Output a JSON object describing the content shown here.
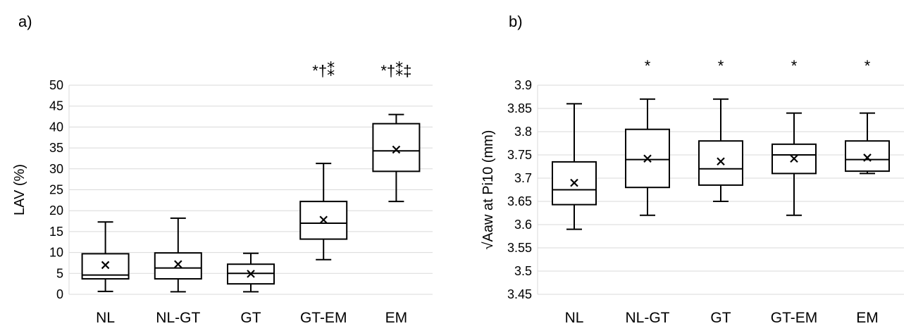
{
  "chart_data": [
    {
      "type": "box",
      "panel_label": "a)",
      "ylabel": "LAV (%)",
      "ylim": [
        0,
        50
      ],
      "y_ticks": [
        "0",
        "5",
        "10",
        "15",
        "20",
        "25",
        "30",
        "35",
        "40",
        "45",
        "50"
      ],
      "grid": true,
      "categories": [
        "NL",
        "NL-GT",
        "GT",
        "GT-EM",
        "EM"
      ],
      "boxes": [
        {
          "category": "NL",
          "min": 0.7,
          "q1": 3.7,
          "median": 4.6,
          "q3": 9.7,
          "max": 17.3,
          "mean": 7.0
        },
        {
          "category": "NL-GT",
          "min": 0.6,
          "q1": 3.7,
          "median": 6.3,
          "q3": 9.9,
          "max": 18.2,
          "mean": 7.2
        },
        {
          "category": "GT",
          "min": 0.6,
          "q1": 2.5,
          "median": 5.0,
          "q3": 7.2,
          "max": 9.8,
          "mean": 4.9
        },
        {
          "category": "GT-EM",
          "min": 8.3,
          "q1": 13.2,
          "median": 17.0,
          "q3": 22.2,
          "max": 31.3,
          "mean": 17.8
        },
        {
          "category": "EM",
          "min": 22.2,
          "q1": 29.4,
          "median": 34.3,
          "q3": 40.8,
          "max": 43.0,
          "mean": 34.6
        }
      ],
      "annotations": [
        "",
        "",
        "",
        "*†⁑",
        "*†⁑‡"
      ]
    },
    {
      "type": "box",
      "panel_label": "b)",
      "ylabel": "√Aaw at Pi10 (mm)",
      "ylim": [
        3.45,
        3.9
      ],
      "y_ticks": [
        "3.45",
        "3.5",
        "3.55",
        "3.6",
        "3.65",
        "3.7",
        "3.75",
        "3.8",
        "3.85",
        "3.9"
      ],
      "grid": true,
      "categories": [
        "NL",
        "NL-GT",
        "GT",
        "GT-EM",
        "EM"
      ],
      "boxes": [
        {
          "category": "NL",
          "min": 3.59,
          "q1": 3.643,
          "median": 3.675,
          "q3": 3.735,
          "max": 3.86,
          "mean": 3.69
        },
        {
          "category": "NL-GT",
          "min": 3.62,
          "q1": 3.68,
          "median": 3.74,
          "q3": 3.805,
          "max": 3.87,
          "mean": 3.742
        },
        {
          "category": "GT",
          "min": 3.65,
          "q1": 3.685,
          "median": 3.72,
          "q3": 3.78,
          "max": 3.87,
          "mean": 3.736
        },
        {
          "category": "GT-EM",
          "min": 3.62,
          "q1": 3.71,
          "median": 3.75,
          "q3": 3.773,
          "max": 3.84,
          "mean": 3.742
        },
        {
          "category": "EM",
          "min": 3.71,
          "q1": 3.715,
          "median": 3.74,
          "q3": 3.78,
          "max": 3.84,
          "mean": 3.744
        }
      ],
      "annotations": [
        "",
        "*",
        "*",
        "*",
        "*"
      ]
    }
  ]
}
